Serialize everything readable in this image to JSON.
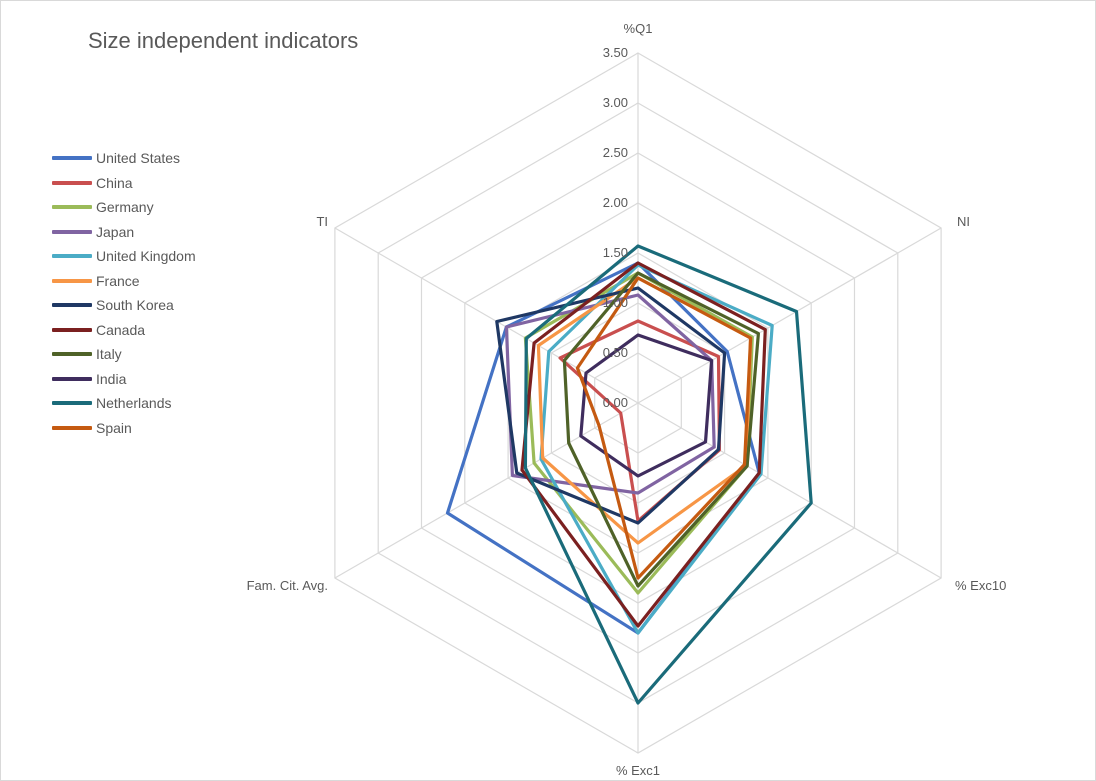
{
  "chart_data": {
    "type": "radar",
    "title": "Size independent indicators",
    "axes": [
      "%Q1",
      "NI",
      "% Exc10",
      "% Exc1",
      "Fam. Cit. Avg.",
      "TI"
    ],
    "rlim": [
      0,
      3.5
    ],
    "ticks": [
      "0.00",
      "0.50",
      "1.00",
      "1.50",
      "2.00",
      "2.50",
      "3.00",
      "3.50"
    ],
    "grid": true,
    "legend_position": "left",
    "series": [
      {
        "name": "United States",
        "color": "#4472c4",
        "values": [
          1.4,
          1.03,
          1.4,
          2.3,
          2.2,
          1.52
        ]
      },
      {
        "name": "China",
        "color": "#c94f4f",
        "values": [
          0.82,
          0.93,
          0.94,
          1.18,
          0.2,
          0.9
        ]
      },
      {
        "name": "Germany",
        "color": "#9bbb59",
        "values": [
          1.3,
          1.32,
          1.26,
          1.9,
          1.2,
          1.3
        ]
      },
      {
        "name": "Japan",
        "color": "#8064a2",
        "values": [
          1.08,
          0.85,
          0.88,
          0.9,
          1.45,
          1.52
        ]
      },
      {
        "name": "United Kingdom",
        "color": "#4bacc6",
        "values": [
          1.38,
          1.55,
          1.42,
          2.3,
          1.12,
          1.03
        ]
      },
      {
        "name": "France",
        "color": "#f79646",
        "values": [
          1.25,
          1.3,
          1.25,
          1.4,
          1.1,
          1.15
        ]
      },
      {
        "name": "South Korea",
        "color": "#1f3864",
        "values": [
          1.15,
          1.0,
          0.93,
          1.2,
          1.4,
          1.63
        ]
      },
      {
        "name": "Canada",
        "color": "#7b2020",
        "values": [
          1.4,
          1.47,
          1.4,
          2.23,
          1.34,
          1.2
        ]
      },
      {
        "name": "Italy",
        "color": "#4f6228",
        "values": [
          1.3,
          1.39,
          1.26,
          1.83,
          0.8,
          0.85
        ]
      },
      {
        "name": "India",
        "color": "#3f2d5e",
        "values": [
          0.68,
          0.85,
          0.78,
          0.73,
          0.66,
          0.6
        ]
      },
      {
        "name": "Netherlands",
        "color": "#1a6b7a",
        "values": [
          1.57,
          1.83,
          2.0,
          3.0,
          1.3,
          1.29
        ]
      },
      {
        "name": "Spain",
        "color": "#c55a11",
        "values": [
          1.25,
          1.3,
          1.23,
          1.75,
          0.45,
          0.7
        ]
      }
    ]
  }
}
